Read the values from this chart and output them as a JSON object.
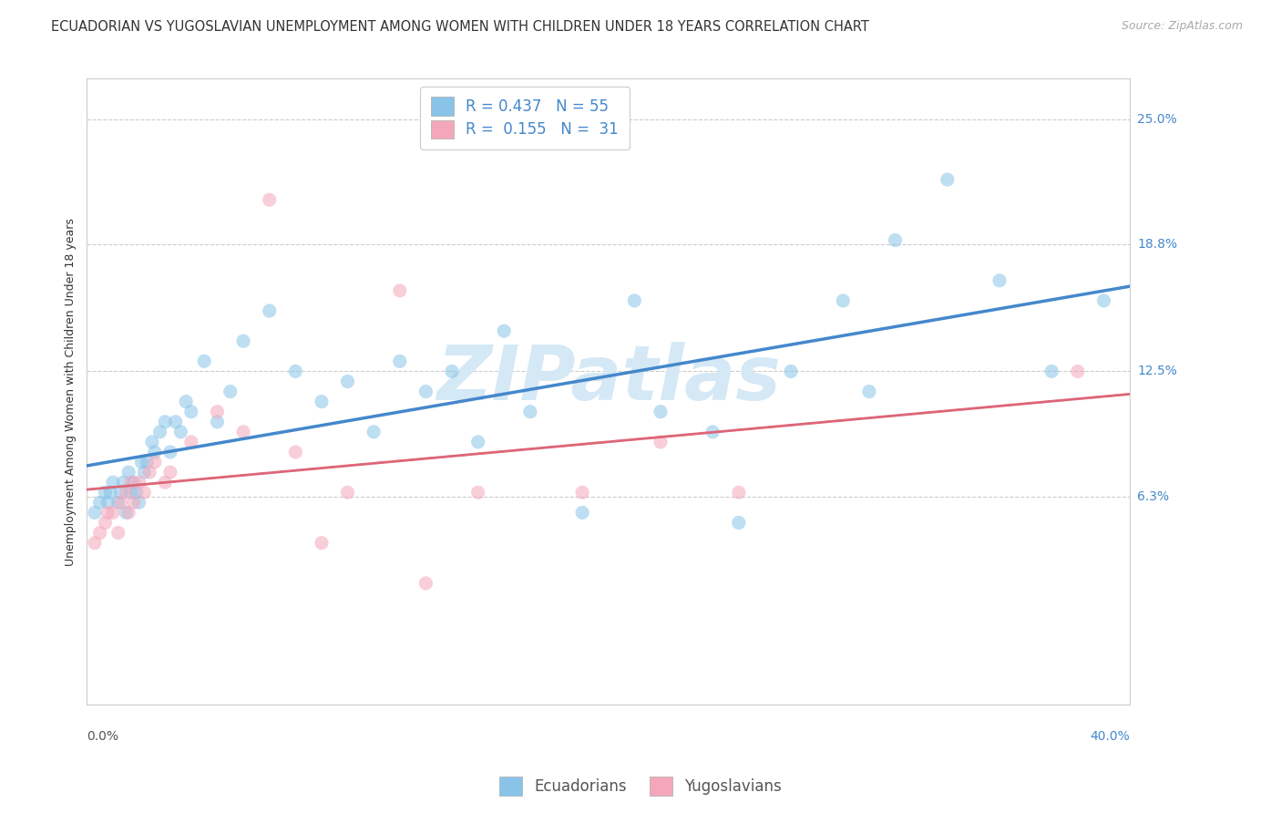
{
  "title": "ECUADORIAN VS YUGOSLAVIAN UNEMPLOYMENT AMONG WOMEN WITH CHILDREN UNDER 18 YEARS CORRELATION CHART",
  "source": "Source: ZipAtlas.com",
  "ylabel": "Unemployment Among Women with Children Under 18 years",
  "xlabel_bottom_left": "0.0%",
  "xlabel_bottom_right": "40.0%",
  "y_tick_labels": [
    "6.3%",
    "12.5%",
    "18.8%",
    "25.0%"
  ],
  "y_tick_values": [
    0.063,
    0.125,
    0.188,
    0.25
  ],
  "xlim": [
    0.0,
    0.4
  ],
  "ylim": [
    -0.04,
    0.27
  ],
  "blue_color": "#89c4e8",
  "pink_color": "#f4a7bb",
  "blue_line_color": "#4488cc",
  "pink_line_color": "#dd6677",
  "legend_blue_R": "0.437",
  "legend_blue_N": "55",
  "legend_pink_R": "0.155",
  "legend_pink_N": "31",
  "legend_label_ecuadorians": "Ecuadorians",
  "legend_label_yugoslavians": "Yugoslavians",
  "watermark": "ZIPatlas",
  "blue_x": [
    0.003,
    0.005,
    0.007,
    0.008,
    0.009,
    0.01,
    0.012,
    0.013,
    0.014,
    0.015,
    0.016,
    0.017,
    0.018,
    0.019,
    0.02,
    0.021,
    0.022,
    0.023,
    0.025,
    0.026,
    0.028,
    0.03,
    0.032,
    0.034,
    0.036,
    0.038,
    0.04,
    0.045,
    0.05,
    0.055,
    0.06,
    0.07,
    0.08,
    0.09,
    0.1,
    0.11,
    0.12,
    0.13,
    0.14,
    0.15,
    0.16,
    0.17,
    0.19,
    0.21,
    0.22,
    0.24,
    0.25,
    0.27,
    0.29,
    0.3,
    0.31,
    0.33,
    0.35,
    0.37,
    0.39
  ],
  "blue_y": [
    0.055,
    0.06,
    0.065,
    0.06,
    0.065,
    0.07,
    0.06,
    0.065,
    0.07,
    0.055,
    0.075,
    0.065,
    0.07,
    0.065,
    0.06,
    0.08,
    0.075,
    0.08,
    0.09,
    0.085,
    0.095,
    0.1,
    0.085,
    0.1,
    0.095,
    0.11,
    0.105,
    0.13,
    0.1,
    0.115,
    0.14,
    0.155,
    0.125,
    0.11,
    0.12,
    0.095,
    0.13,
    0.115,
    0.125,
    0.09,
    0.145,
    0.105,
    0.055,
    0.16,
    0.105,
    0.095,
    0.05,
    0.125,
    0.16,
    0.115,
    0.19,
    0.22,
    0.17,
    0.125,
    0.16
  ],
  "pink_x": [
    0.003,
    0.005,
    0.007,
    0.008,
    0.01,
    0.012,
    0.013,
    0.015,
    0.016,
    0.017,
    0.018,
    0.02,
    0.022,
    0.024,
    0.026,
    0.03,
    0.032,
    0.04,
    0.05,
    0.06,
    0.07,
    0.08,
    0.09,
    0.1,
    0.12,
    0.13,
    0.15,
    0.19,
    0.22,
    0.25,
    0.38
  ],
  "pink_y": [
    0.04,
    0.045,
    0.05,
    0.055,
    0.055,
    0.045,
    0.06,
    0.065,
    0.055,
    0.07,
    0.06,
    0.07,
    0.065,
    0.075,
    0.08,
    0.07,
    0.075,
    0.09,
    0.105,
    0.095,
    0.21,
    0.085,
    0.04,
    0.065,
    0.165,
    0.02,
    0.065,
    0.065,
    0.09,
    0.065,
    0.125
  ],
  "title_fontsize": 10.5,
  "source_fontsize": 9,
  "label_fontsize": 9,
  "tick_fontsize": 10,
  "legend_fontsize": 12,
  "watermark_fontsize": 60,
  "watermark_color": "#d5e8f5",
  "background_color": "#ffffff",
  "grid_color": "#cccccc",
  "marker_size": 120,
  "marker_alpha": 0.55
}
